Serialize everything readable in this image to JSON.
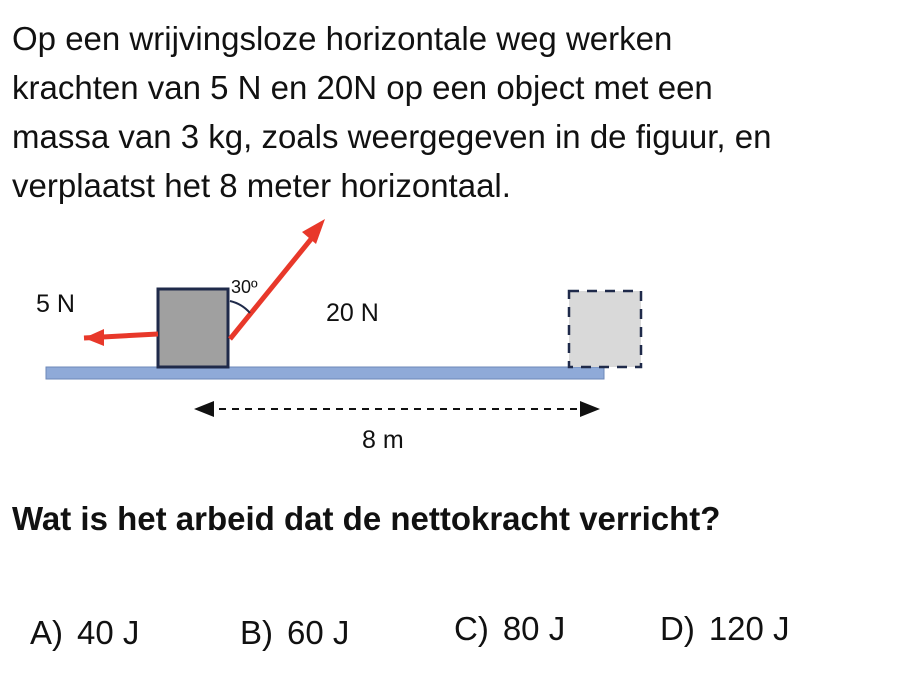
{
  "problem": {
    "lines": [
      "Op een wrijvingsloze horizontale weg werken",
      "krachten van 5 N en  20N  op een object met een",
      "massa van 3 kg, zoals weergegeven in de figuur, en",
      "verplaatst het 8 meter horizontaal."
    ]
  },
  "figure": {
    "force_left_label": "5 N",
    "force_angled_label": "20 N",
    "angle_label": "30º",
    "distance_label": "8 m",
    "colors": {
      "arrow": "#e8382a",
      "ground": "#8faad8",
      "block": "#a0a0a0",
      "ghost_block": "#d9d9d9",
      "outline": "#1f2a4a"
    }
  },
  "question": "Wat is het arbeid dat de nettokracht verricht?",
  "choices": [
    {
      "letter": "A)",
      "text": "40 J"
    },
    {
      "letter": "B)",
      "text": "60 J"
    },
    {
      "letter": "C)",
      "text": "80 J"
    },
    {
      "letter": "D)",
      "text": "120 J"
    }
  ]
}
